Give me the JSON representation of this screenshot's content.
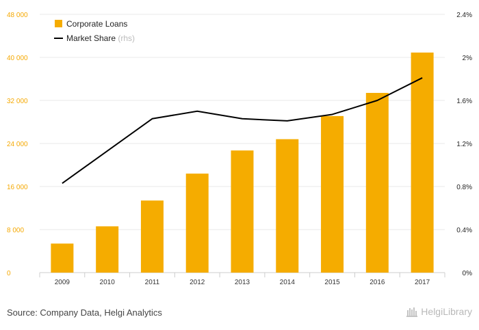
{
  "chart_data": {
    "type": "bar",
    "categories": [
      "2009",
      "2010",
      "2011",
      "2012",
      "2013",
      "2014",
      "2015",
      "2016",
      "2017"
    ],
    "series": [
      {
        "name": "Corporate Loans",
        "type": "bar",
        "axis": "left",
        "color": "#f5ac00",
        "values": [
          5400,
          8600,
          13400,
          18400,
          22700,
          24800,
          29100,
          33400,
          40900
        ]
      },
      {
        "name": "Market Share",
        "name_suffix": "(rhs)",
        "type": "line",
        "axis": "right",
        "color": "#000000",
        "values": [
          0.83,
          1.13,
          1.43,
          1.5,
          1.43,
          1.41,
          1.47,
          1.6,
          1.81
        ]
      }
    ],
    "y_left": {
      "min": 0,
      "max": 48000,
      "ticks": [
        0,
        8000,
        16000,
        24000,
        32000,
        40000,
        48000
      ],
      "tick_labels": [
        "0",
        "8 000",
        "16 000",
        "24 000",
        "32 000",
        "40 000",
        "48 000"
      ]
    },
    "y_right": {
      "min": 0,
      "max": 2.4,
      "ticks": [
        0,
        0.4,
        0.8,
        1.2,
        1.6,
        2.0,
        2.4
      ],
      "tick_labels": [
        "0%",
        "0.4%",
        "0.8%",
        "1.2%",
        "1.6%",
        "2%",
        "2.4%"
      ]
    },
    "grid": true,
    "legend_position": "top-left",
    "title": "",
    "xlabel": "",
    "ylabel": ""
  },
  "footer": {
    "source": "Source: Company Data, Helgi Analytics",
    "logo_text": "HelgiLibrary"
  }
}
